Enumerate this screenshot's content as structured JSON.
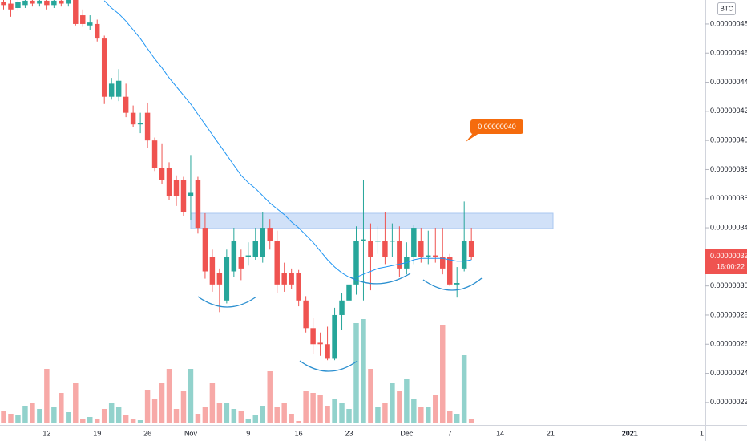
{
  "chart_data": {
    "type": "candlestick",
    "currency": "BTC",
    "annotation": "0.00000040",
    "last_price_label": "0.00000032",
    "countdown": "16:00:22",
    "up_color": "#26a69a",
    "down_color": "#ef5350",
    "ma_color": "#2196f3",
    "ylim": [
      2.045e-07,
      4.965e-07
    ],
    "yticks": [
      {
        "value": 4.8e-07,
        "label": "0.00000048"
      },
      {
        "value": 4.6e-07,
        "label": "0.00000046"
      },
      {
        "value": 4.4e-07,
        "label": "0.00000044"
      },
      {
        "value": 4.2e-07,
        "label": "0.00000042"
      },
      {
        "value": 4e-07,
        "label": "0.00000040"
      },
      {
        "value": 3.8e-07,
        "label": "0.00000038"
      },
      {
        "value": 3.6e-07,
        "label": "0.00000036"
      },
      {
        "value": 3.4e-07,
        "label": "0.00000034"
      },
      {
        "value": 3.2e-07,
        "label": "0.00000032"
      },
      {
        "value": 3e-07,
        "label": "0.00000030"
      },
      {
        "value": 2.8e-07,
        "label": "0.00000028"
      },
      {
        "value": 2.6e-07,
        "label": "0.00000026"
      },
      {
        "value": 2.4e-07,
        "label": "0.00000024"
      },
      {
        "value": 2.2e-07,
        "label": "0.00000022"
      }
    ],
    "categories": [
      null,
      null,
      null,
      null,
      null,
      null,
      "12",
      null,
      null,
      null,
      null,
      null,
      null,
      "19",
      null,
      null,
      null,
      null,
      null,
      null,
      "26",
      null,
      null,
      null,
      null,
      null,
      "Nov",
      null,
      null,
      null,
      null,
      null,
      null,
      null,
      "9",
      null,
      null,
      null,
      null,
      null,
      null,
      "16",
      null,
      null,
      null,
      null,
      null,
      null,
      "23",
      null,
      null,
      null,
      null,
      null,
      null,
      null,
      "Dec",
      null,
      null,
      null,
      null,
      null,
      "7",
      null,
      null,
      null,
      null,
      null,
      null,
      "14",
      null,
      null,
      null,
      null,
      null,
      null,
      "21",
      null,
      null,
      null,
      null,
      null,
      null,
      null,
      null,
      null,
      null,
      "2021",
      null,
      null,
      null,
      null,
      null,
      null,
      null,
      null,
      null,
      "1"
    ],
    "open": [
      4.95e-07,
      4.94e-07,
      4.91e-07,
      4.93e-07,
      4.96e-07,
      4.94e-07,
      4.96e-07,
      4.93e-07,
      4.96e-07,
      4.94e-07,
      4.97e-07,
      4.86e-07,
      4.79e-07,
      4.8e-07,
      4.7e-07,
      4.3e-07,
      4.3e-07,
      4.3e-07,
      4.19e-07,
      4.11e-07,
      4.19e-07,
      4e-07,
      3.81e-07,
      3.81e-07,
      3.73e-07,
      3.73e-07,
      3.62e-07,
      3.73e-07,
      3.4e-07,
      3.2e-07,
      3.09e-07,
      2.9e-07,
      3.1e-07,
      3.2e-07,
      3.2e-07,
      3.2e-07,
      3.2e-07,
      3.4e-07,
      3.31e-07,
      3.09e-07,
      3.09e-07,
      3.09e-07,
      2.9e-07,
      2.71e-07,
      2.61e-07,
      2.6e-07,
      2.5e-07,
      2.8e-07,
      2.9e-07,
      3.01e-07,
      3.31e-07,
      3.31e-07,
      3.31e-07,
      3.31e-07,
      3.31e-07,
      3.31e-07,
      3.12e-07,
      3.2e-07,
      3.31e-07,
      3.2e-07,
      3.21e-07,
      3.2e-07,
      3.2e-07,
      3.01e-07,
      3.12e-07,
      3.31e-07,
      null,
      null,
      null,
      null,
      null,
      null,
      null,
      null,
      null,
      null,
      null,
      null,
      null,
      null,
      null,
      null,
      null,
      null,
      null,
      null,
      null,
      null,
      null,
      null,
      null,
      null,
      null,
      null,
      null,
      null,
      null,
      null
    ],
    "high": [
      4.98e-07,
      4.97e-07,
      4.98e-07,
      4.99e-07,
      4.99e-07,
      4.98e-07,
      4.99e-07,
      4.98e-07,
      4.99e-07,
      4.99e-07,
      4.99e-07,
      4.9e-07,
      4.86e-07,
      4.83e-07,
      4.72e-07,
      4.43e-07,
      4.49e-07,
      4.39e-07,
      4.24e-07,
      4.19e-07,
      4.26e-07,
      4.02e-07,
      3.98e-07,
      3.85e-07,
      3.76e-07,
      3.75e-07,
      3.9e-07,
      3.75e-07,
      3.5e-07,
      3.25e-07,
      3.12e-07,
      3.25e-07,
      3.4e-07,
      3.25e-07,
      3.3e-07,
      3.4e-07,
      3.51e-07,
      3.46e-07,
      3.38e-07,
      3.16e-07,
      3.12e-07,
      3.11e-07,
      2.93e-07,
      2.78e-07,
      2.68e-07,
      2.72e-07,
      2.85e-07,
      2.95e-07,
      3.06e-07,
      3.41e-07,
      3.73e-07,
      3.43e-07,
      3.41e-07,
      3.51e-07,
      3.43e-07,
      3.41e-07,
      3.3e-07,
      3.42e-07,
      3.4e-07,
      3.38e-07,
      3.4e-07,
      3.4e-07,
      3.22e-07,
      3.13e-07,
      3.58e-07,
      3.4e-07,
      null,
      null,
      null,
      null,
      null,
      null,
      null,
      null,
      null,
      null,
      null,
      null,
      null,
      null,
      null,
      null,
      null,
      null,
      null,
      null,
      null,
      null,
      null,
      null,
      null,
      null,
      null,
      null,
      null,
      null,
      null,
      null
    ],
    "low": [
      4.9e-07,
      4.85e-07,
      4.89e-07,
      4.91e-07,
      4.92e-07,
      4.92e-07,
      4.9e-07,
      4.91e-07,
      4.92e-07,
      4.92e-07,
      4.79e-07,
      4.78e-07,
      4.76e-07,
      4.68e-07,
      4.25e-07,
      4.28e-07,
      4.27e-07,
      4.16e-07,
      4.09e-07,
      4.05e-07,
      3.95e-07,
      3.79e-07,
      3.7e-07,
      3.59e-07,
      3.55e-07,
      3.48e-07,
      3.45e-07,
      3.36e-07,
      3.05e-07,
      2.96e-07,
      2.82e-07,
      2.88e-07,
      3.06e-07,
      3.04e-07,
      3.14e-07,
      3.18e-07,
      3.16e-07,
      3.25e-07,
      2.95e-07,
      2.96e-07,
      2.98e-07,
      2.86e-07,
      2.68e-07,
      2.53e-07,
      2.52e-07,
      2.49e-07,
      2.49e-07,
      2.7e-07,
      2.86e-07,
      2.94e-07,
      2.9e-07,
      2.97e-07,
      3.22e-07,
      3.15e-07,
      3.2e-07,
      3.06e-07,
      3.08e-07,
      3.15e-07,
      3.16e-07,
      3.15e-07,
      3.16e-07,
      3.08e-07,
      3e-07,
      2.92e-07,
      3.1e-07,
      3.18e-07,
      null,
      null,
      null,
      null,
      null,
      null,
      null,
      null,
      null,
      null,
      null,
      null,
      null,
      null,
      null,
      null,
      null,
      null,
      null,
      null,
      null,
      null,
      null,
      null,
      null,
      null,
      null,
      null,
      null,
      null,
      null,
      null
    ],
    "close": [
      4.93e-07,
      4.9e-07,
      4.95e-07,
      4.96e-07,
      4.94e-07,
      4.96e-07,
      4.93e-07,
      4.96e-07,
      4.94e-07,
      4.97e-07,
      4.8e-07,
      4.8e-07,
      4.81e-07,
      4.7e-07,
      4.3e-07,
      4.39e-07,
      4.41e-07,
      4.19e-07,
      4.11e-07,
      4.12e-07,
      4e-07,
      3.81e-07,
      3.73e-07,
      3.62e-07,
      3.62e-07,
      3.51e-07,
      3.64e-07,
      3.4e-07,
      3.1e-07,
      3.01e-07,
      3.01e-07,
      3.2e-07,
      3.31e-07,
      3.12e-07,
      3.21e-07,
      3.31e-07,
      3.4e-07,
      3.31e-07,
      3.01e-07,
      3.01e-07,
      3.01e-07,
      2.9e-07,
      2.71e-07,
      2.6e-07,
      2.6e-07,
      2.5e-07,
      2.8e-07,
      2.9e-07,
      3.01e-07,
      3.31e-07,
      3.32e-07,
      3.2e-07,
      3.31e-07,
      3.2e-07,
      3.31e-07,
      3.12e-07,
      3.2e-07,
      3.4e-07,
      3.2e-07,
      3.21e-07,
      3.2e-07,
      3.12e-07,
      3.01e-07,
      3.02e-07,
      3.31e-07,
      3.2e-07,
      null,
      null,
      null,
      null,
      null,
      null,
      null,
      null,
      null,
      null,
      null,
      null,
      null,
      null,
      null,
      null,
      null,
      null,
      null,
      null,
      null,
      null,
      null,
      null,
      null,
      null,
      null,
      null,
      null,
      null,
      null,
      null
    ],
    "volume": [
      15,
      12,
      10,
      22,
      25,
      18,
      68,
      20,
      38,
      14,
      50,
      5,
      8,
      6,
      18,
      25,
      20,
      10,
      5,
      4,
      42,
      30,
      50,
      68,
      18,
      40,
      68,
      12,
      20,
      50,
      25,
      25,
      18,
      15,
      5,
      10,
      22,
      65,
      20,
      25,
      12,
      3,
      40,
      38,
      35,
      22,
      30,
      25,
      18,
      125,
      130,
      68,
      20,
      25,
      50,
      40,
      55,
      30,
      20,
      20,
      35,
      123,
      15,
      12,
      85,
      5,
      null,
      null,
      null,
      null,
      null,
      null,
      null,
      null,
      null,
      null,
      null,
      null,
      null,
      null,
      null,
      null,
      null,
      null,
      null,
      null,
      null,
      null,
      null,
      null,
      null,
      null,
      null,
      null,
      null,
      null,
      null,
      null
    ],
    "moving_average": [
      null,
      null,
      null,
      null,
      null,
      null,
      null,
      null,
      null,
      null,
      null,
      null,
      null,
      null,
      4.96e-07,
      4.91e-07,
      4.87e-07,
      4.82e-07,
      4.76e-07,
      4.7e-07,
      4.63e-07,
      4.56e-07,
      4.5e-07,
      4.43e-07,
      4.37e-07,
      4.31e-07,
      4.25e-07,
      4.18e-07,
      4.11e-07,
      4.04e-07,
      3.97e-07,
      3.9e-07,
      3.83e-07,
      3.76e-07,
      3.71e-07,
      3.67e-07,
      3.62e-07,
      3.57e-07,
      3.53e-07,
      3.49e-07,
      3.44e-07,
      3.4e-07,
      3.35e-07,
      3.3e-07,
      3.24e-07,
      3.18e-07,
      3.13e-07,
      3.09e-07,
      3.06e-07,
      3.06e-07,
      3.08e-07,
      3.1e-07,
      3.12e-07,
      3.13e-07,
      3.14e-07,
      3.15e-07,
      3.16e-07,
      3.18e-07,
      3.19e-07,
      3.19e-07,
      3.19e-07,
      3.19e-07,
      3.18e-07,
      3.17e-07,
      3.17e-07,
      3.18e-07,
      null,
      null,
      null,
      null,
      null,
      null,
      null,
      null,
      null,
      null,
      null,
      null,
      null,
      null,
      null,
      null,
      null,
      null,
      null,
      null,
      null,
      null,
      null,
      null,
      null,
      null,
      null,
      null,
      null,
      null,
      null,
      null
    ]
  }
}
